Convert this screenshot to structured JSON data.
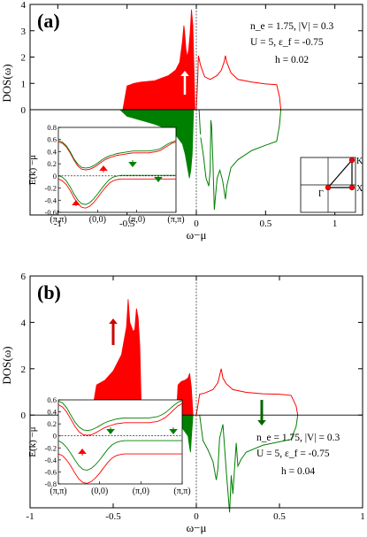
{
  "chart_data": [
    {
      "type": "area",
      "panel_label": "(a)",
      "xlabel": "ω−μ",
      "ylabel": "DOS(ω)",
      "xlim": [
        -1.2,
        1.2
      ],
      "ylim": [
        -4,
        4
      ],
      "xticks": [
        -1,
        -0.5,
        0,
        0.5,
        1
      ],
      "xtick_labels": [
        "-1",
        "-0.5",
        "0",
        "0.5",
        "1"
      ],
      "yticks": [
        0,
        1,
        2,
        3,
        4
      ],
      "ytick_labels": [
        "0",
        "1",
        "2",
        "3",
        "4"
      ],
      "annotations": [
        "n_e = 1.75, |V| = 0.3",
        "U = 5,  ε_f = -0.75",
        "h = 0.02"
      ],
      "spin_up_color": "#ff0000",
      "spin_down_color": "#008000",
      "spin_up": {
        "x": [
          -0.53,
          -0.5,
          -0.45,
          -0.4,
          -0.3,
          -0.2,
          -0.15,
          -0.12,
          -0.1,
          -0.09,
          -0.085,
          -0.075,
          -0.065,
          -0.055,
          -0.045,
          -0.035,
          -0.025,
          -0.02,
          -0.015,
          -0.01
        ],
        "y": [
          0,
          0.9,
          1.0,
          1.05,
          1.1,
          1.3,
          1.5,
          1.8,
          2.6,
          3.2,
          3.0,
          2.3,
          2.0,
          2.3,
          2.9,
          3.8,
          3.2,
          2.2,
          1.2,
          0
        ]
      },
      "spin_up_empty": {
        "x": [
          0,
          0.01,
          0.015,
          0.03,
          0.06,
          0.1,
          0.15,
          0.18,
          0.2,
          0.21,
          0.22,
          0.25,
          0.3,
          0.4,
          0.5,
          0.58,
          0.6,
          0.61
        ],
        "y": [
          0,
          1.2,
          2.05,
          1.7,
          1.25,
          1.15,
          1.3,
          1.5,
          1.8,
          2.05,
          1.8,
          1.4,
          1.15,
          1.05,
          0.98,
          0.95,
          0.5,
          0
        ]
      },
      "spin_down": {
        "x": [
          -0.55,
          -0.5,
          -0.4,
          -0.3,
          -0.2,
          -0.15,
          -0.1,
          -0.08,
          -0.06,
          -0.05,
          -0.04,
          -0.03,
          -0.025,
          -0.02
        ],
        "y": [
          0,
          -0.25,
          -0.4,
          -0.55,
          -0.75,
          -0.95,
          -1.3,
          -1.7,
          -2.3,
          -2.6,
          -2.3,
          -1.7,
          -0.9,
          0
        ]
      },
      "spin_down_empty": {
        "x": [
          0.02,
          0.03,
          0.05,
          0.07,
          0.09,
          0.1,
          0.105,
          0.11,
          0.12,
          0.13,
          0.15,
          0.17,
          0.19,
          0.21,
          0.22,
          0.25,
          0.3,
          0.4,
          0.5,
          0.58,
          0.6,
          0.61
        ],
        "y": [
          0,
          -1.0,
          -1.7,
          -2.6,
          -2.9,
          -2.3,
          -0.4,
          -0.6,
          -2.0,
          -3.8,
          -2.6,
          -2.3,
          -2.7,
          -3.4,
          -2.9,
          -2.2,
          -1.9,
          -1.55,
          -1.35,
          -1.2,
          -0.6,
          0
        ]
      },
      "inset": {
        "ylabel": "E(k) −μ",
        "ylim": [
          -0.6,
          0.8
        ],
        "yticks": [
          -0.6,
          -0.4,
          -0.2,
          0,
          0.2,
          0.4,
          0.6,
          0.8
        ],
        "ytick_labels": [
          "-0.6",
          "-0.4",
          "-0.2",
          "0",
          "0.2",
          "0.4",
          "0.6",
          "0.8"
        ],
        "xtick_labels": [
          "(π,π)",
          "(0,0)",
          "(π,0)",
          "(π,π)"
        ],
        "k": [
          0,
          0.1,
          0.2,
          0.3,
          0.4,
          0.5,
          0.6,
          0.7,
          0.8,
          0.9,
          1.0,
          1.1,
          1.2,
          1.3,
          1.4,
          1.5,
          1.6,
          1.7,
          1.8,
          1.9,
          2.0,
          2.1,
          2.2,
          2.3,
          2.4,
          2.5,
          2.6,
          2.7,
          2.8,
          2.9,
          3.0
        ],
        "upper_up": [
          0.56,
          0.54,
          0.48,
          0.38,
          0.26,
          0.16,
          0.11,
          0.1,
          0.11,
          0.14,
          0.18,
          0.23,
          0.27,
          0.3,
          0.32,
          0.34,
          0.35,
          0.36,
          0.37,
          0.38,
          0.38,
          0.38,
          0.38,
          0.38,
          0.39,
          0.4,
          0.42,
          0.46,
          0.5,
          0.54,
          0.56
        ],
        "upper_down": [
          0.58,
          0.56,
          0.5,
          0.4,
          0.28,
          0.19,
          0.14,
          0.13,
          0.14,
          0.17,
          0.21,
          0.26,
          0.3,
          0.33,
          0.35,
          0.37,
          0.38,
          0.39,
          0.4,
          0.41,
          0.41,
          0.41,
          0.41,
          0.41,
          0.42,
          0.43,
          0.45,
          0.49,
          0.53,
          0.56,
          0.58
        ],
        "lower_up": [
          -0.05,
          -0.08,
          -0.14,
          -0.24,
          -0.36,
          -0.46,
          -0.52,
          -0.53,
          -0.5,
          -0.44,
          -0.36,
          -0.27,
          -0.19,
          -0.12,
          -0.08,
          -0.06,
          -0.05,
          -0.05,
          -0.05,
          -0.05,
          -0.05,
          -0.05,
          -0.05,
          -0.05,
          -0.05,
          -0.05,
          -0.05,
          -0.05,
          -0.05,
          -0.05,
          -0.05
        ],
        "lower_down": [
          0.01,
          -0.02,
          -0.08,
          -0.18,
          -0.3,
          -0.4,
          -0.46,
          -0.47,
          -0.44,
          -0.38,
          -0.3,
          -0.21,
          -0.13,
          -0.06,
          -0.02,
          0.0,
          0.01,
          0.01,
          0.01,
          0.01,
          0.01,
          0.01,
          0.01,
          0.01,
          0.01,
          0.01,
          0.01,
          0.01,
          0.01,
          0.01,
          0.01
        ]
      },
      "bz_labels": [
        "K",
        "Γ",
        "X"
      ]
    },
    {
      "type": "area",
      "panel_label": "(b)",
      "xlabel": "ω−μ",
      "ylabel": "DOS(ω)",
      "xlim": [
        -1,
        1
      ],
      "ylim": [
        -4,
        6
      ],
      "xticks": [
        -1,
        -0.5,
        0,
        0.5,
        1
      ],
      "xtick_labels": [
        "-1",
        "-0.5",
        "0",
        "0.5",
        "1"
      ],
      "yticks": [
        0,
        2,
        4,
        6
      ],
      "ytick_labels": [
        "0",
        "2",
        "4",
        "6"
      ],
      "annotations": [
        "n_e = 1.75, |V| = 0.3",
        "U = 5,  ε_f = -0.75",
        "h = 0.04"
      ],
      "spin_up": {
        "x": [
          -0.63,
          -0.6,
          -0.55,
          -0.5,
          -0.45,
          -0.42,
          -0.41,
          -0.4,
          -0.38,
          -0.37,
          -0.36,
          -0.35,
          -0.34,
          -0.33
        ],
        "y": [
          0,
          1.3,
          1.5,
          1.9,
          2.6,
          3.8,
          5.0,
          4.0,
          3.6,
          3.7,
          4.6,
          4.2,
          3.0,
          0
        ]
      },
      "spin_up_gap_segment": {
        "x": [
          -0.12,
          -0.11,
          -0.09,
          -0.07,
          -0.05,
          -0.04,
          -0.03,
          -0.02
        ],
        "y": [
          0,
          1.3,
          1.45,
          1.5,
          1.6,
          1.8,
          1.2,
          0
        ]
      },
      "spin_up_empty": {
        "x": [
          0,
          0.02,
          0.05,
          0.1,
          0.13,
          0.15,
          0.16,
          0.18,
          0.22,
          0.3,
          0.4,
          0.5,
          0.57,
          0.6,
          0.61
        ],
        "y": [
          0,
          0.9,
          0.95,
          1.1,
          1.4,
          2.0,
          1.6,
          1.35,
          1.1,
          0.98,
          0.92,
          0.9,
          0.85,
          0.4,
          0
        ]
      },
      "spin_down": {
        "x": [
          -0.57,
          -0.5,
          -0.4,
          -0.3,
          -0.2,
          -0.12,
          -0.08,
          -0.05,
          -0.04,
          -0.035,
          -0.03,
          -0.02
        ],
        "y": [
          0,
          -0.15,
          -0.22,
          -0.28,
          -0.35,
          -0.45,
          -0.6,
          -0.9,
          -1.4,
          -1.6,
          -1.0,
          0
        ]
      },
      "spin_down_empty": {
        "x": [
          0.02,
          0.04,
          0.07,
          0.1,
          0.12,
          0.13,
          0.14,
          0.16,
          0.18,
          0.2,
          0.21,
          0.22,
          0.24,
          0.25,
          0.27,
          0.3,
          0.4,
          0.5,
          0.57,
          0.6,
          0.61
        ],
        "y": [
          0,
          -1.1,
          -1.5,
          -2.0,
          -2.8,
          -2.3,
          -1.0,
          -0.4,
          -2.4,
          -4.2,
          -2.6,
          -3.4,
          -1.2,
          -2.2,
          -1.9,
          -1.6,
          -1.3,
          -1.15,
          -1.05,
          -0.5,
          0
        ]
      },
      "inset": {
        "ylabel": "E(k) −μ",
        "ylim": [
          -0.8,
          0.6
        ],
        "yticks": [
          -0.8,
          -0.6,
          -0.4,
          -0.2,
          0,
          0.2,
          0.4,
          0.6
        ],
        "ytick_labels": [
          "-0.8",
          "-0.6",
          "-0.4",
          "-0.2",
          "0",
          "0.2",
          "0.4",
          "0.6"
        ],
        "xtick_labels": [
          "(π,π)",
          "(0,0)",
          "(π,0)",
          "(π,π)"
        ],
        "k": [
          0,
          0.1,
          0.2,
          0.3,
          0.4,
          0.5,
          0.6,
          0.7,
          0.8,
          0.9,
          1.0,
          1.1,
          1.2,
          1.3,
          1.4,
          1.5,
          1.6,
          1.7,
          1.8,
          1.9,
          2.0,
          2.1,
          2.2,
          2.3,
          2.4,
          2.5,
          2.6,
          2.7,
          2.8,
          2.9,
          3.0
        ],
        "upper_up": [
          0.52,
          0.48,
          0.4,
          0.28,
          0.16,
          0.07,
          0.02,
          0.01,
          0.02,
          0.05,
          0.09,
          0.13,
          0.16,
          0.18,
          0.2,
          0.21,
          0.22,
          0.22,
          0.22,
          0.22,
          0.22,
          0.22,
          0.22,
          0.23,
          0.24,
          0.27,
          0.31,
          0.37,
          0.44,
          0.5,
          0.54
        ],
        "upper_down": [
          0.58,
          0.55,
          0.47,
          0.35,
          0.23,
          0.15,
          0.1,
          0.09,
          0.1,
          0.13,
          0.17,
          0.21,
          0.24,
          0.26,
          0.28,
          0.29,
          0.3,
          0.3,
          0.3,
          0.3,
          0.3,
          0.3,
          0.3,
          0.31,
          0.32,
          0.35,
          0.39,
          0.45,
          0.51,
          0.56,
          0.59
        ],
        "lower_up": [
          -0.3,
          -0.33,
          -0.4,
          -0.5,
          -0.62,
          -0.72,
          -0.78,
          -0.79,
          -0.76,
          -0.7,
          -0.62,
          -0.53,
          -0.44,
          -0.37,
          -0.33,
          -0.31,
          -0.3,
          -0.3,
          -0.3,
          -0.3,
          -0.3,
          -0.3,
          -0.3,
          -0.3,
          -0.3,
          -0.3,
          -0.3,
          -0.3,
          -0.3,
          -0.3,
          -0.3
        ],
        "lower_down": [
          -0.08,
          -0.12,
          -0.19,
          -0.29,
          -0.4,
          -0.5,
          -0.56,
          -0.57,
          -0.54,
          -0.48,
          -0.4,
          -0.31,
          -0.22,
          -0.15,
          -0.11,
          -0.09,
          -0.08,
          -0.08,
          -0.08,
          -0.08,
          -0.08,
          -0.08,
          -0.08,
          -0.08,
          -0.08,
          -0.08,
          -0.08,
          -0.08,
          -0.08,
          -0.08,
          -0.08
        ]
      }
    }
  ]
}
